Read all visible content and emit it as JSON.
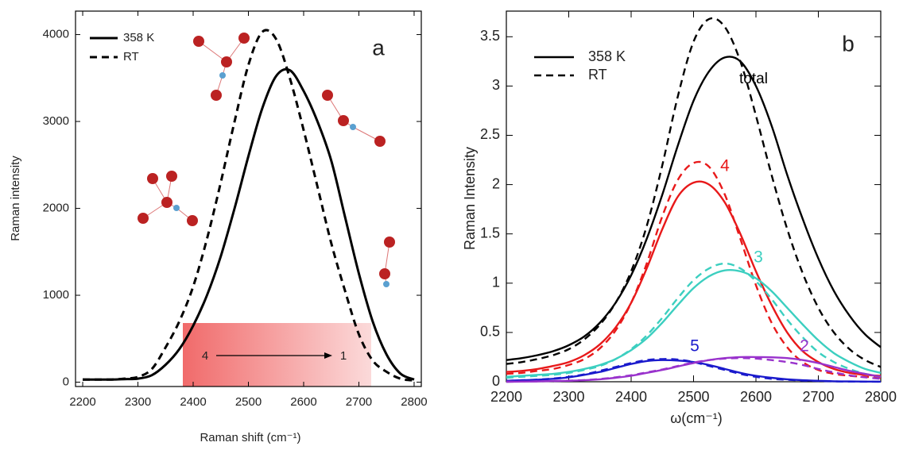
{
  "chart_data": [
    {
      "type": "line",
      "panel_label": "a",
      "x_label": "Raman shift (cm⁻¹)",
      "y_label": "Raman intensity",
      "xlim": [
        2187,
        2813
      ],
      "ylim": [
        -50,
        4270
      ],
      "xticks": [
        2200,
        2300,
        2400,
        2500,
        2600,
        2700,
        2800
      ],
      "yticks": [
        0,
        1000,
        2000,
        3000,
        4000
      ],
      "legend": "upper left",
      "annotations": [
        "4",
        "1"
      ],
      "x": [
        2200,
        2225,
        2250,
        2275,
        2300,
        2325,
        2350,
        2375,
        2400,
        2425,
        2450,
        2475,
        2500,
        2525,
        2550,
        2575,
        2600,
        2625,
        2650,
        2675,
        2700,
        2725,
        2750,
        2775,
        2800
      ],
      "series": [
        {
          "name": "358 K",
          "color": "#000000",
          "style": "solid",
          "values": [
            30,
            30,
            30,
            35,
            40,
            80,
            200,
            380,
            650,
            1000,
            1450,
            2000,
            2600,
            3150,
            3520,
            3590,
            3350,
            3000,
            2550,
            1900,
            1250,
            700,
            320,
            100,
            30
          ]
        },
        {
          "name": "RT",
          "color": "#000000",
          "style": "dashed",
          "values": [
            30,
            30,
            30,
            40,
            60,
            150,
            400,
            700,
            1100,
            1650,
            2300,
            3000,
            3650,
            4030,
            3950,
            3500,
            2900,
            2250,
            1600,
            1050,
            550,
            250,
            120,
            40,
            20
          ]
        }
      ]
    },
    {
      "type": "line",
      "panel_label": "b",
      "x_label": "ω(cm⁻¹)",
      "y_label": "Raman Intensity",
      "xlim": [
        2200,
        2800
      ],
      "ylim": [
        0,
        3.76
      ],
      "xticks": [
        2200,
        2300,
        2400,
        2500,
        2600,
        2700,
        2800
      ],
      "yticks": [
        0,
        0.5,
        1,
        1.5,
        2,
        2.5,
        3,
        3.5
      ],
      "legend": [
        {
          "name": "358 K",
          "style": "solid"
        },
        {
          "name": "RT",
          "style": "dashed"
        }
      ],
      "x": [
        2200,
        2225,
        2250,
        2275,
        2300,
        2325,
        2350,
        2375,
        2400,
        2425,
        2450,
        2475,
        2500,
        2525,
        2550,
        2575,
        2600,
        2625,
        2650,
        2675,
        2700,
        2725,
        2750,
        2775,
        2800
      ],
      "series": [
        {
          "name": "total",
          "color": "#000000",
          "lines": [
            {
              "style": "solid",
              "values": [
                0.22,
                0.24,
                0.27,
                0.31,
                0.37,
                0.46,
                0.6,
                0.8,
                1.08,
                1.45,
                1.9,
                2.4,
                2.85,
                3.15,
                3.29,
                3.25,
                3.0,
                2.6,
                2.1,
                1.65,
                1.25,
                0.92,
                0.67,
                0.48,
                0.35
              ]
            },
            {
              "style": "dashed",
              "values": [
                0.18,
                0.2,
                0.23,
                0.27,
                0.33,
                0.43,
                0.58,
                0.8,
                1.12,
                1.58,
                2.2,
                2.9,
                3.45,
                3.68,
                3.6,
                3.25,
                2.7,
                2.1,
                1.55,
                1.1,
                0.75,
                0.5,
                0.33,
                0.22,
                0.15
              ]
            }
          ]
        },
        {
          "name": "4",
          "color": "#e8191a",
          "lines": [
            {
              "style": "solid",
              "values": [
                0.1,
                0.11,
                0.13,
                0.16,
                0.2,
                0.27,
                0.38,
                0.55,
                0.8,
                1.15,
                1.55,
                1.88,
                2.02,
                2.0,
                1.82,
                1.5,
                1.12,
                0.78,
                0.5,
                0.31,
                0.2,
                0.13,
                0.09,
                0.07,
                0.06
              ]
            },
            {
              "style": "dashed",
              "values": [
                0.08,
                0.09,
                0.11,
                0.13,
                0.17,
                0.23,
                0.34,
                0.52,
                0.8,
                1.2,
                1.68,
                2.05,
                2.22,
                2.18,
                1.9,
                1.45,
                0.98,
                0.6,
                0.35,
                0.2,
                0.12,
                0.08,
                0.06,
                0.05,
                0.04
              ]
            }
          ]
        },
        {
          "name": "3",
          "color": "#3ccfc0",
          "lines": [
            {
              "style": "solid",
              "values": [
                0.05,
                0.06,
                0.07,
                0.08,
                0.1,
                0.13,
                0.17,
                0.23,
                0.32,
                0.44,
                0.6,
                0.78,
                0.95,
                1.07,
                1.13,
                1.12,
                1.05,
                0.92,
                0.75,
                0.58,
                0.42,
                0.29,
                0.2,
                0.13,
                0.09
              ]
            },
            {
              "style": "dashed",
              "values": [
                0.04,
                0.05,
                0.06,
                0.07,
                0.09,
                0.12,
                0.16,
                0.23,
                0.33,
                0.47,
                0.65,
                0.85,
                1.03,
                1.15,
                1.2,
                1.15,
                1.02,
                0.84,
                0.63,
                0.45,
                0.3,
                0.2,
                0.13,
                0.08,
                0.05
              ]
            }
          ]
        },
        {
          "name": "5",
          "color": "#1a1acc",
          "lines": [
            {
              "style": "solid",
              "values": [
                0.01,
                0.015,
                0.02,
                0.03,
                0.045,
                0.07,
                0.1,
                0.14,
                0.18,
                0.21,
                0.22,
                0.215,
                0.2,
                0.17,
                0.13,
                0.09,
                0.06,
                0.04,
                0.025,
                0.015,
                0.01,
                0.005,
                0.003,
                0.002,
                0.001
              ]
            },
            {
              "style": "dashed",
              "values": [
                0.01,
                0.015,
                0.022,
                0.033,
                0.05,
                0.075,
                0.11,
                0.15,
                0.19,
                0.22,
                0.23,
                0.225,
                0.2,
                0.16,
                0.12,
                0.08,
                0.05,
                0.03,
                0.02,
                0.012,
                0.008,
                0.004,
                0.002,
                0.001,
                0.001
              ]
            }
          ]
        },
        {
          "name": "2",
          "color": "#9932cc",
          "lines": [
            {
              "style": "solid",
              "values": [
                0.0,
                0.002,
                0.004,
                0.007,
                0.01,
                0.015,
                0.025,
                0.04,
                0.06,
                0.09,
                0.12,
                0.155,
                0.19,
                0.22,
                0.24,
                0.25,
                0.25,
                0.248,
                0.24,
                0.22,
                0.19,
                0.15,
                0.11,
                0.08,
                0.05
              ]
            },
            {
              "style": "dashed",
              "values": [
                0.0,
                0.002,
                0.004,
                0.007,
                0.011,
                0.017,
                0.028,
                0.045,
                0.066,
                0.095,
                0.125,
                0.16,
                0.195,
                0.22,
                0.235,
                0.24,
                0.235,
                0.22,
                0.2,
                0.17,
                0.13,
                0.095,
                0.065,
                0.045,
                0.03
              ]
            }
          ]
        }
      ]
    }
  ]
}
